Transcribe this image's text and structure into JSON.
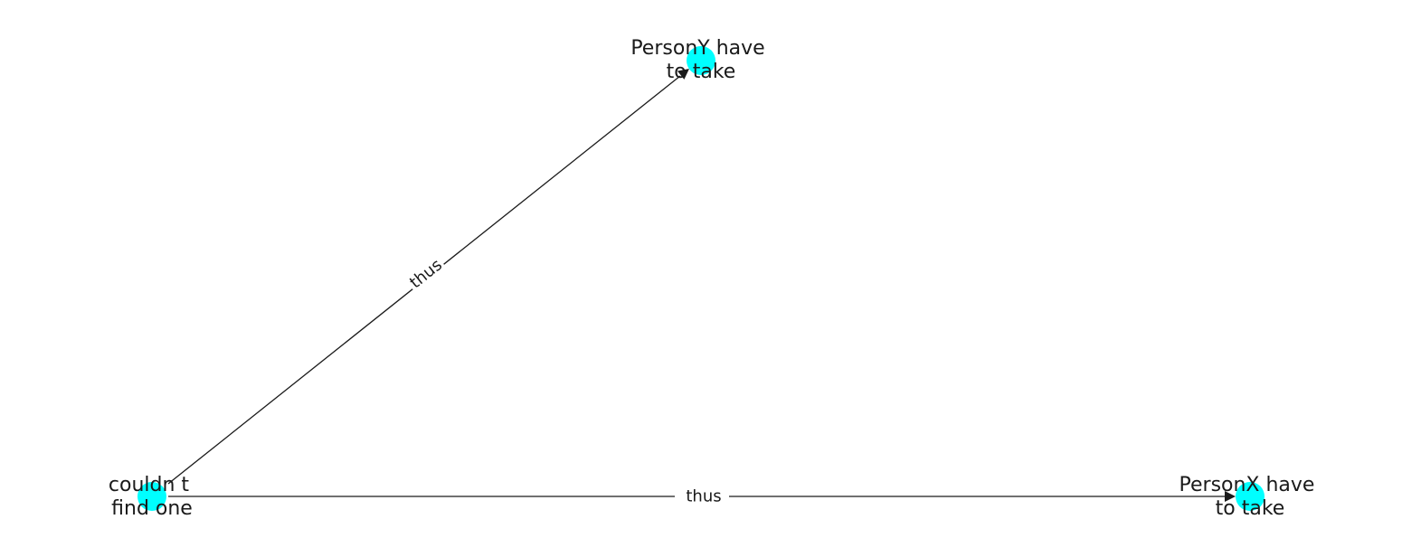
{
  "diagram": {
    "node_color": "#00ffff",
    "edge_color": "#1a1a1a",
    "nodes": [
      {
        "id": "n0",
        "label_lines": [
          "couldn t",
          "find one"
        ]
      },
      {
        "id": "n1",
        "label_lines": [
          "PersonY have",
          "to take"
        ]
      },
      {
        "id": "n2",
        "label_lines": [
          "PersonX have",
          "to take"
        ]
      }
    ],
    "edges": [
      {
        "source": "n0",
        "target": "n1",
        "label": "thus"
      },
      {
        "source": "n0",
        "target": "n2",
        "label": "thus"
      }
    ]
  }
}
